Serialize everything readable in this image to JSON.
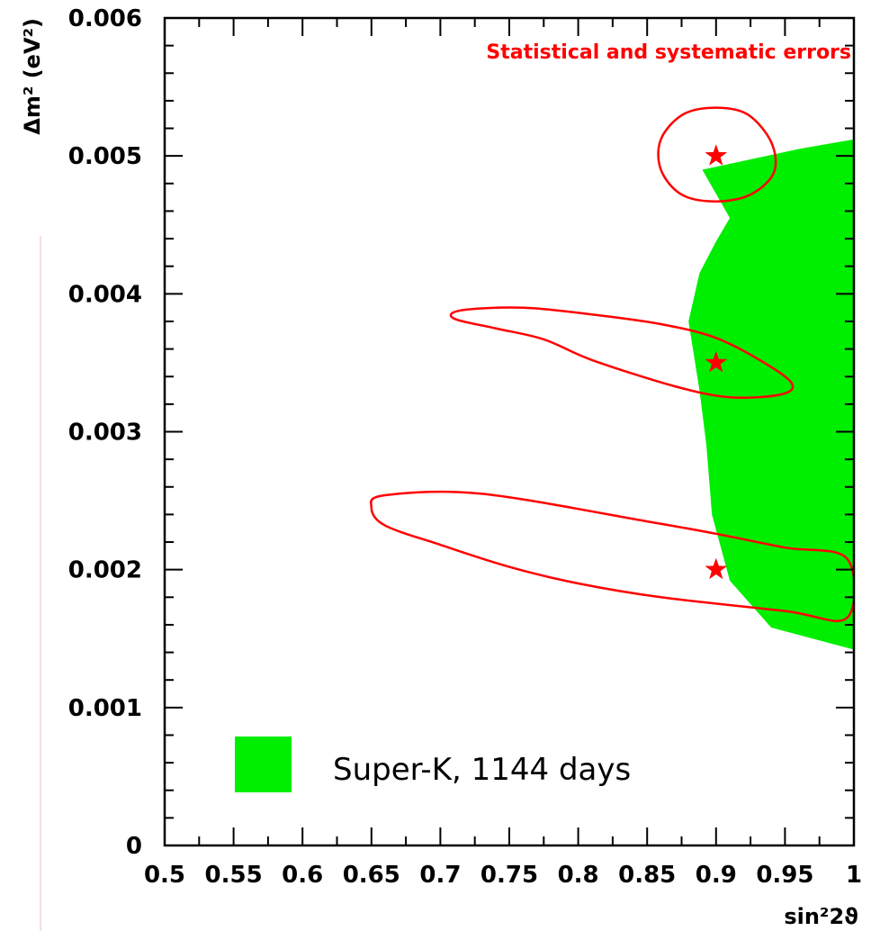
{
  "chart_data": {
    "type": "scatter",
    "title": "Statistical and systematic errors",
    "xlabel": "sin²2ϑ",
    "ylabel": "Δm² (eV²)",
    "xlim": [
      0.5,
      1.0
    ],
    "ylim": [
      0,
      0.006
    ],
    "x_ticks": [
      {
        "value": 0.5,
        "label": "0.5"
      },
      {
        "value": 0.55,
        "label": "0.55"
      },
      {
        "value": 0.6,
        "label": "0.6"
      },
      {
        "value": 0.65,
        "label": "0.65"
      },
      {
        "value": 0.7,
        "label": "0.7"
      },
      {
        "value": 0.75,
        "label": "0.75"
      },
      {
        "value": 0.8,
        "label": "0.8"
      },
      {
        "value": 0.85,
        "label": "0.85"
      },
      {
        "value": 0.9,
        "label": "0.9"
      },
      {
        "value": 0.95,
        "label": "0.95"
      },
      {
        "value": 1.0,
        "label": "1"
      }
    ],
    "y_ticks": [
      {
        "value": 0,
        "label": "0"
      },
      {
        "value": 0.001,
        "label": "0.001"
      },
      {
        "value": 0.002,
        "label": "0.002"
      },
      {
        "value": 0.003,
        "label": "0.003"
      },
      {
        "value": 0.004,
        "label": "0.004"
      },
      {
        "value": 0.005,
        "label": "0.005"
      },
      {
        "value": 0.006,
        "label": "0.006"
      }
    ],
    "best_fit_points": [
      {
        "x": 0.9,
        "y": 0.005
      },
      {
        "x": 0.9,
        "y": 0.0035
      },
      {
        "x": 0.9,
        "y": 0.002
      }
    ],
    "error_contours": [
      [
        [
          0.9,
          0.00535
        ],
        [
          0.923,
          0.0053
        ],
        [
          0.94,
          0.0051
        ],
        [
          0.942,
          0.00488
        ],
        [
          0.925,
          0.00472
        ],
        [
          0.9,
          0.00467
        ],
        [
          0.875,
          0.00472
        ],
        [
          0.86,
          0.0049
        ],
        [
          0.86,
          0.00512
        ],
        [
          0.876,
          0.0053
        ]
      ],
      [
        [
          0.86,
          0.00378
        ],
        [
          0.9,
          0.00368
        ],
        [
          0.935,
          0.0035
        ],
        [
          0.955,
          0.00335
        ],
        [
          0.947,
          0.00327
        ],
        [
          0.91,
          0.00325
        ],
        [
          0.87,
          0.00333
        ],
        [
          0.81,
          0.00352
        ],
        [
          0.775,
          0.00367
        ],
        [
          0.74,
          0.00375
        ],
        [
          0.71,
          0.00382
        ],
        [
          0.715,
          0.00388
        ],
        [
          0.76,
          0.0039
        ],
        [
          0.81,
          0.00385
        ]
      ],
      [
        [
          0.65,
          0.00245
        ],
        [
          0.66,
          0.00254
        ],
        [
          0.73,
          0.00255
        ],
        [
          0.85,
          0.00235
        ],
        [
          0.9,
          0.00226
        ],
        [
          0.95,
          0.00216
        ],
        [
          0.995,
          0.00208
        ],
        [
          0.995,
          0.00165
        ],
        [
          0.95,
          0.0017
        ],
        [
          0.86,
          0.0018
        ],
        [
          0.8,
          0.0019
        ],
        [
          0.75,
          0.00202
        ],
        [
          0.7,
          0.00218
        ],
        [
          0.66,
          0.00232
        ]
      ]
    ],
    "series": [
      {
        "name": "Super-K, 1144 days",
        "color": "#00ee00",
        "region": [
          [
            0.89,
            0.0049
          ],
          [
            0.96,
            0.00505
          ],
          [
            1.0,
            0.00512
          ],
          [
            1.0,
            0.00142
          ],
          [
            0.94,
            0.00158
          ],
          [
            0.91,
            0.00192
          ],
          [
            0.897,
            0.0024
          ],
          [
            0.893,
            0.0029
          ],
          [
            0.888,
            0.0033
          ],
          [
            0.88,
            0.0038
          ],
          [
            0.888,
            0.00415
          ],
          [
            0.9,
            0.00438
          ],
          [
            0.91,
            0.00455
          ]
        ]
      }
    ],
    "marker_color": "#ff0000",
    "contour_color": "#ff0000",
    "legend_position": "bottom-left",
    "grid": false
  }
}
